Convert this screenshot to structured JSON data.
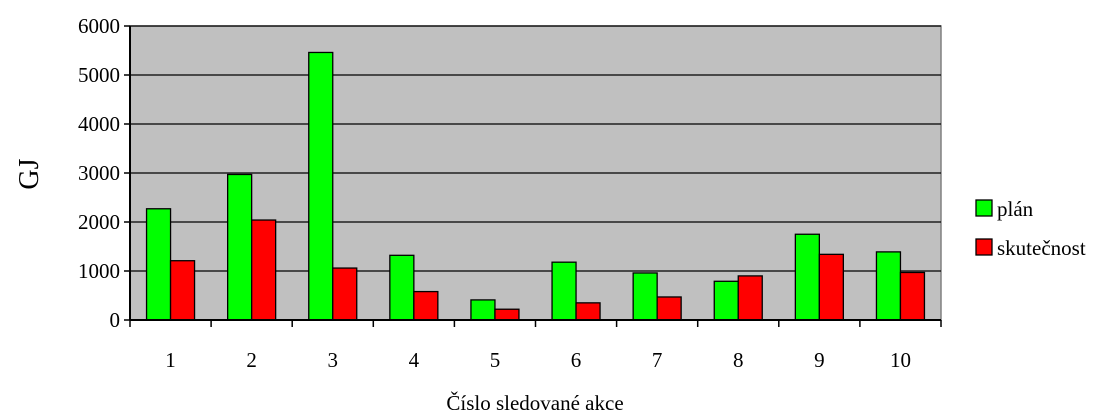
{
  "chart_data": {
    "type": "bar",
    "title": "",
    "xlabel": "Číslo sledované akce",
    "ylabel": "GJ",
    "categories": [
      "1",
      "2",
      "3",
      "4",
      "5",
      "6",
      "7",
      "8",
      "9",
      "10"
    ],
    "series": [
      {
        "name": "plán",
        "color": "#00ff00",
        "values": [
          2270,
          2970,
          5460,
          1320,
          410,
          1180,
          960,
          790,
          1750,
          1390
        ]
      },
      {
        "name": "skutečnost",
        "color": "#ff0000",
        "values": [
          1210,
          2040,
          1060,
          580,
          220,
          350,
          470,
          900,
          1340,
          970
        ]
      }
    ],
    "ylim": [
      0,
      6000
    ],
    "yticks": [
      0,
      1000,
      2000,
      3000,
      4000,
      5000,
      6000
    ],
    "grid": true,
    "plot_background": "#c0c0c0",
    "legend_position": "right"
  }
}
